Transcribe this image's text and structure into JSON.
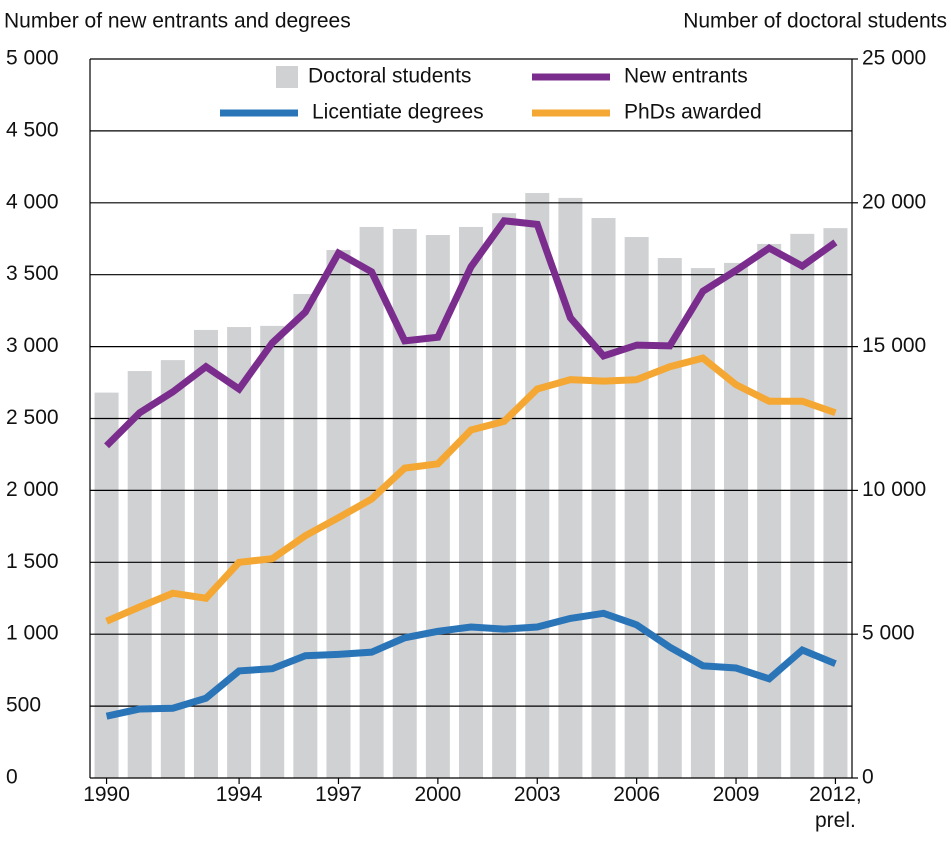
{
  "chart_data": {
    "type": "bar_line",
    "y_label": "Number of new entrants and degrees",
    "y2_label": "Number of doctoral students",
    "categories": [
      "1990",
      null,
      null,
      null,
      "1994",
      null,
      null,
      "1997",
      null,
      null,
      "2000",
      null,
      null,
      "2003",
      null,
      null,
      "2006",
      null,
      null,
      "2009",
      null,
      null,
      "2012, prel."
    ],
    "series": [
      {
        "name": "Doctoral students",
        "type": "bar",
        "axis": "y2",
        "color": "#cfd1d3",
        "values": [
          13400,
          14150,
          14530,
          15580,
          15680,
          15720,
          16830,
          18360,
          19160,
          19090,
          18880,
          19160,
          19640,
          20340,
          20170,
          19470,
          18810,
          18080,
          17730,
          17910,
          18570,
          18920,
          19120
        ]
      },
      {
        "name": "New entrants",
        "type": "line",
        "color": "#7b2d8e",
        "values": [
          2310,
          2540,
          2685,
          2860,
          2705,
          3025,
          3240,
          3650,
          3520,
          3040,
          3065,
          3555,
          3875,
          3850,
          3200,
          2935,
          3010,
          3005,
          3385,
          3530,
          3685,
          3560,
          3725
        ]
      },
      {
        "name": "Licentiate degrees",
        "type": "line",
        "color": "#2a74b8",
        "values": [
          430,
          480,
          485,
          555,
          745,
          760,
          850,
          860,
          875,
          975,
          1020,
          1050,
          1035,
          1050,
          1110,
          1145,
          1065,
          910,
          780,
          765,
          690,
          890,
          795
        ]
      },
      {
        "name": "PhDs awarded",
        "type": "line",
        "color": "#f5a733",
        "values": [
          1090,
          1190,
          1285,
          1250,
          1500,
          1525,
          1685,
          1810,
          1940,
          2155,
          2185,
          2420,
          2480,
          2705,
          2770,
          2760,
          2770,
          2860,
          2920,
          2735,
          2620,
          2620,
          2540
        ]
      }
    ],
    "ylim": [
      0,
      5000
    ],
    "yticks": [
      0,
      500,
      {
        "value": 1000,
        "label": "1 000"
      },
      {
        "value": 1500,
        "label": "1 500"
      },
      {
        "value": 2000,
        "label": "2 000"
      },
      {
        "value": 2500,
        "label": "2 500"
      },
      {
        "value": 3000,
        "label": "3 000"
      },
      {
        "value": 3500,
        "label": "3 500"
      },
      {
        "value": 4000,
        "label": "4 000"
      },
      {
        "value": 4500,
        "label": "4 500"
      },
      {
        "value": 5000,
        "label": "5 000"
      }
    ],
    "y2lim": [
      0,
      25000
    ],
    "y2ticks": [
      0,
      {
        "value": 5000,
        "label": "5 000"
      },
      {
        "value": 10000,
        "label": "10 000"
      },
      {
        "value": 15000,
        "label": "15 000"
      },
      {
        "value": 20000,
        "label": "20 000"
      },
      {
        "value": 25000,
        "label": "25 000"
      }
    ],
    "grid": true
  }
}
